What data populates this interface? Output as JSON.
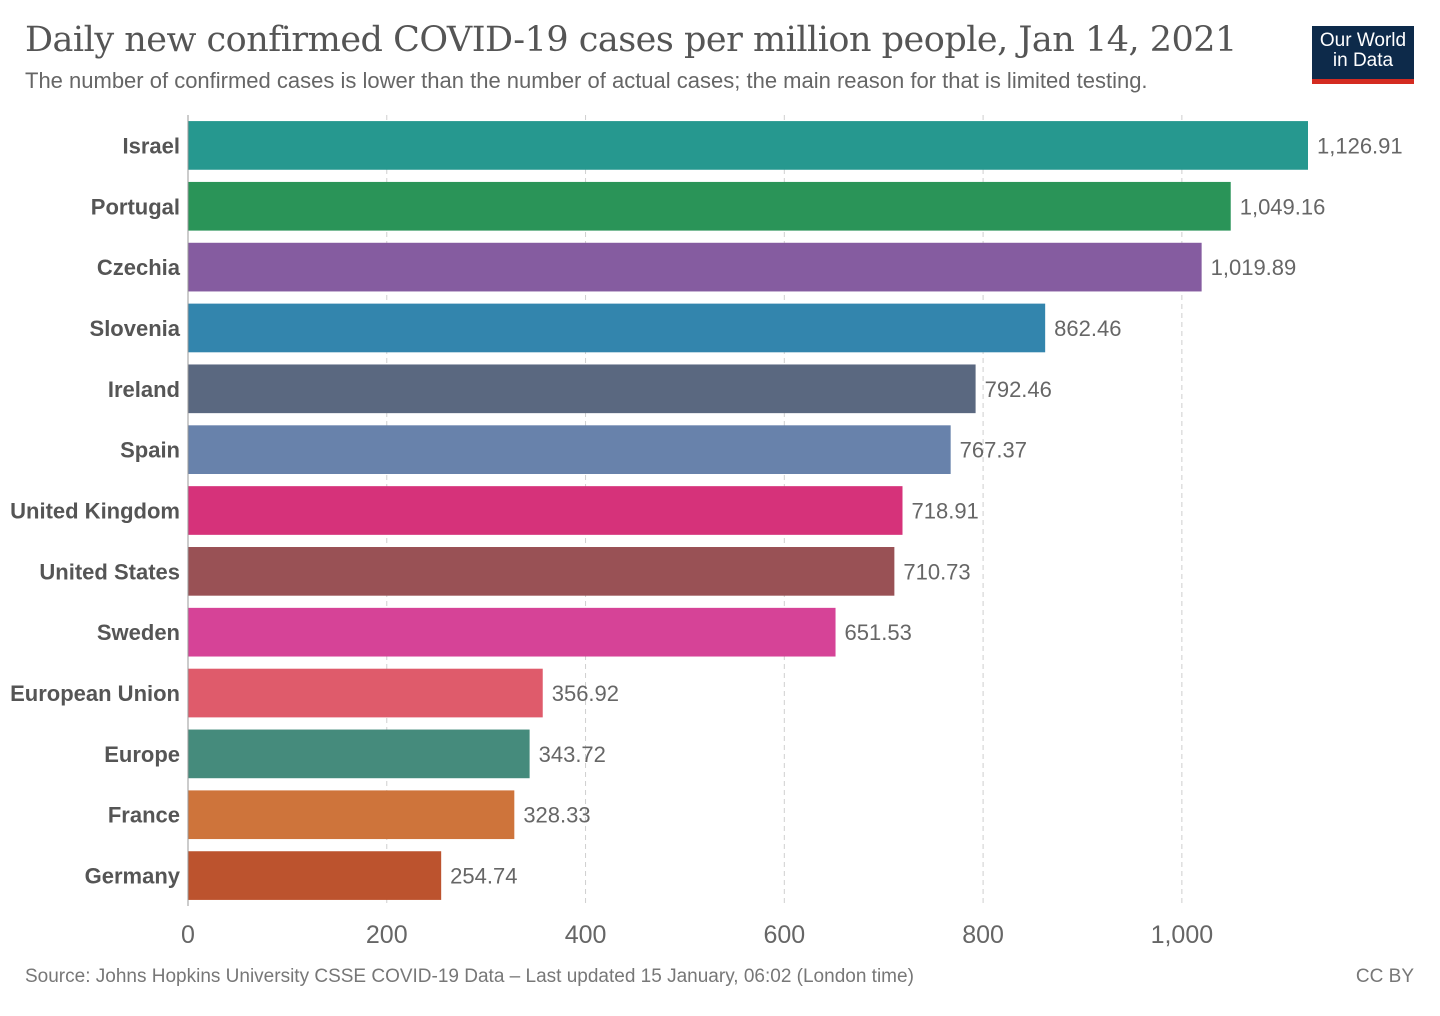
{
  "header": {
    "title": "Daily new confirmed COVID-19 cases per million people, Jan 14, 2021",
    "subtitle": "The number of confirmed cases is lower than the number of actual cases; the main reason for that is limited testing."
  },
  "logo": {
    "line1": "Our World",
    "line2": "in Data",
    "background": "#0d2a4a",
    "accent": "#d42b21"
  },
  "footer": {
    "source": "Source: Johns Hopkins University CSSE COVID-19 Data – Last updated 15 January, 06:02 (London time)",
    "license": "CC BY"
  },
  "chart_data": {
    "type": "bar",
    "orientation": "horizontal",
    "categories": [
      "Israel",
      "Portugal",
      "Czechia",
      "Slovenia",
      "Ireland",
      "Spain",
      "United Kingdom",
      "United States",
      "Sweden",
      "European Union",
      "Europe",
      "France",
      "Germany"
    ],
    "values": [
      1126.91,
      1049.16,
      1019.89,
      862.46,
      792.46,
      767.37,
      718.91,
      710.73,
      651.53,
      356.92,
      343.72,
      328.33,
      254.74
    ],
    "value_labels": [
      "1,126.91",
      "1,049.16",
      "1,019.89",
      "862.46",
      "792.46",
      "767.37",
      "718.91",
      "710.73",
      "651.53",
      "356.92",
      "343.72",
      "328.33",
      "254.74"
    ],
    "colors": [
      "#26988f",
      "#2a9458",
      "#855ca0",
      "#3385ad",
      "#5a6880",
      "#6882ab",
      "#d6327a",
      "#995155",
      "#d64397",
      "#df5b6b",
      "#458b7c",
      "#ce743b",
      "#bc532e"
    ],
    "xlim": [
      0,
      1126.91
    ],
    "xticks": [
      0,
      200,
      400,
      600,
      800,
      1000
    ],
    "xtick_labels": [
      "0",
      "200",
      "400",
      "600",
      "800",
      "1,000"
    ],
    "grid": "vertical dashed",
    "xlabel": "",
    "ylabel": ""
  }
}
